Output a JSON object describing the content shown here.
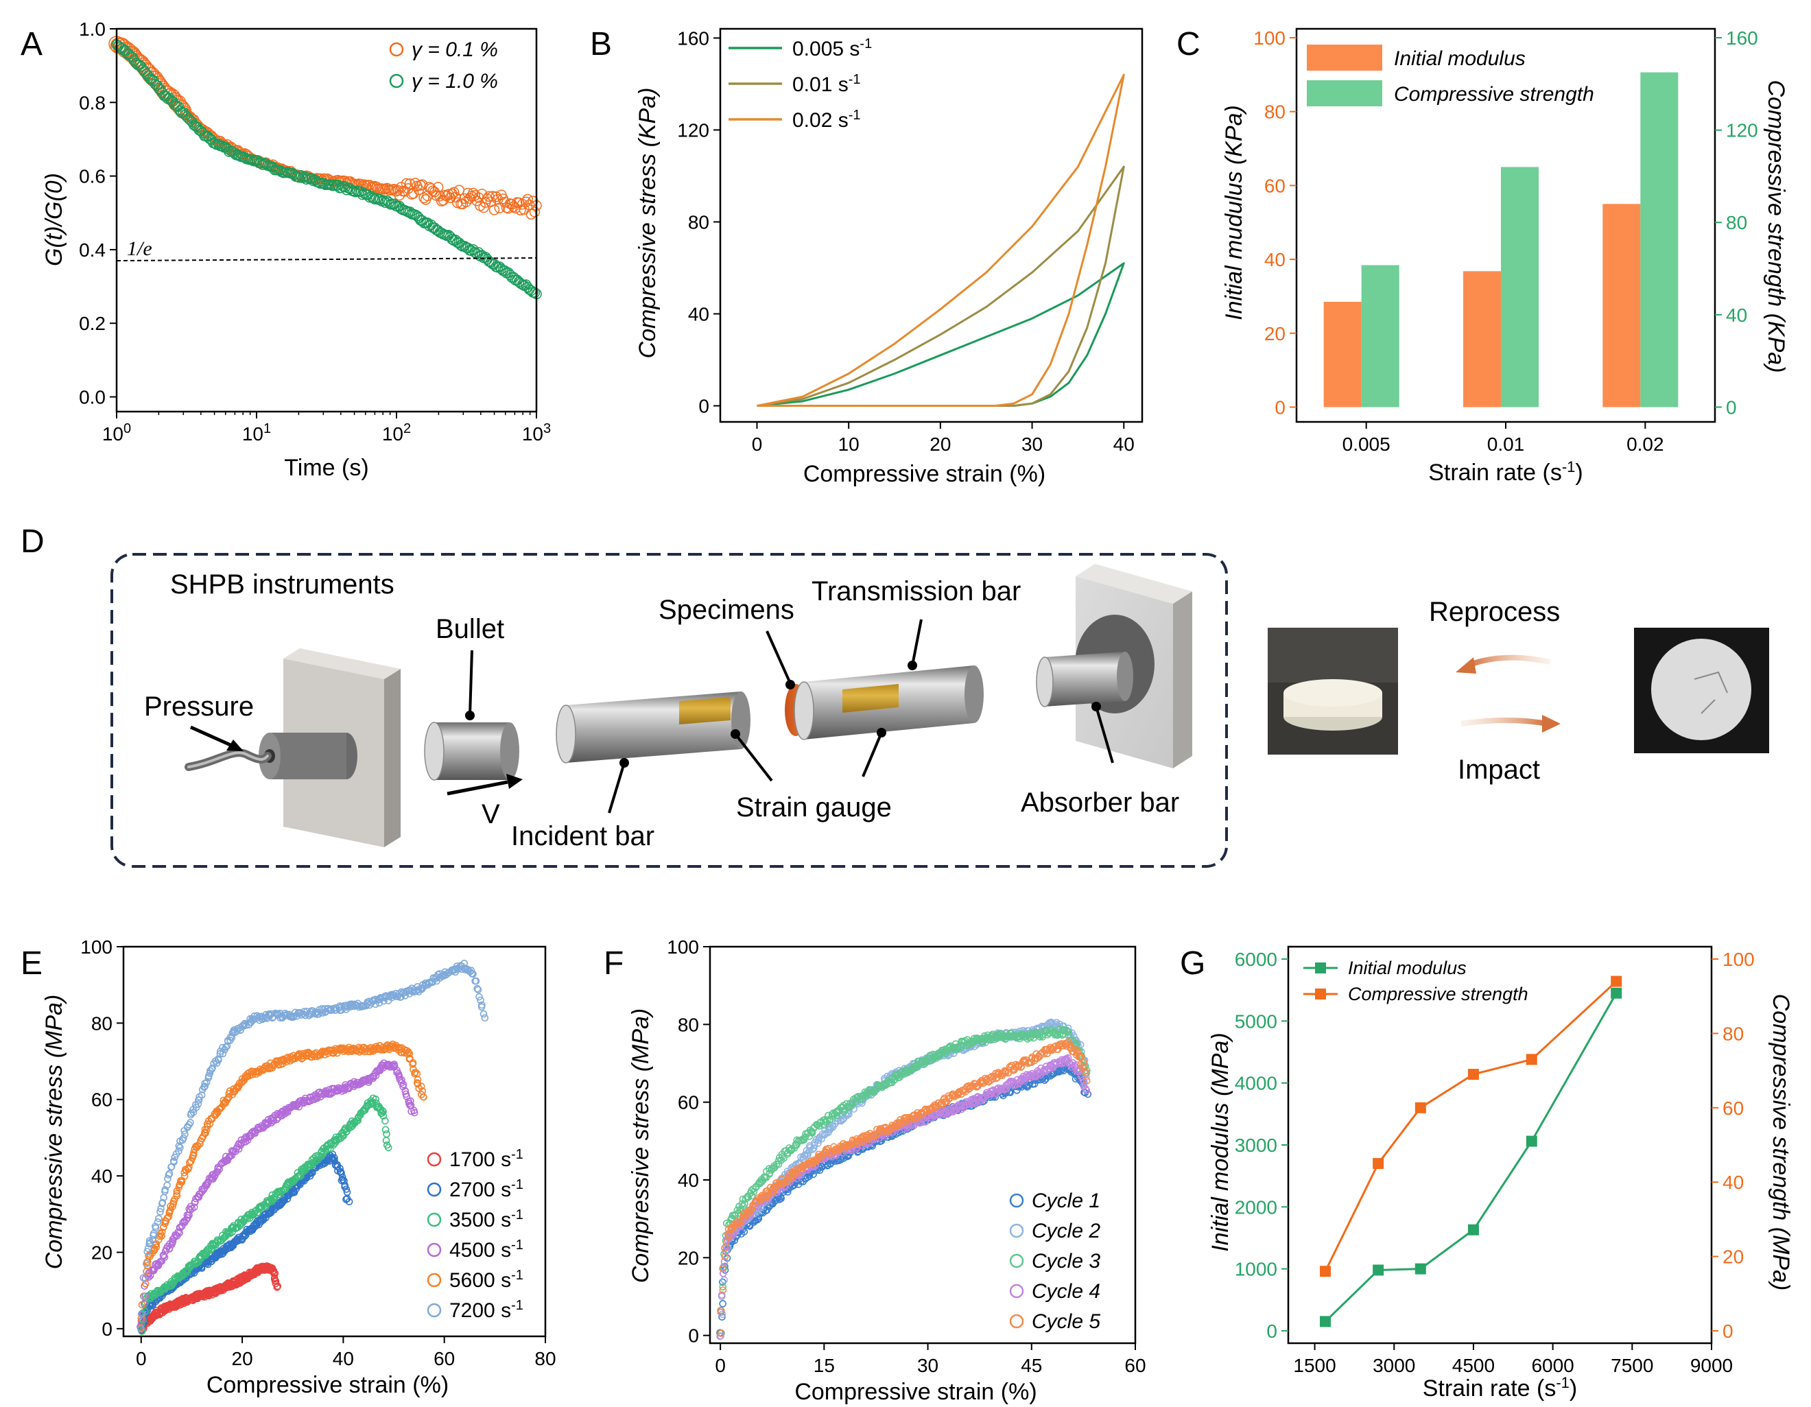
{
  "chart_data": [
    {
      "panel": "A",
      "type": "scatter",
      "xlabel": "Time (s)",
      "ylabel": "G(t)/G(0)",
      "xscale": "log",
      "xlim": [
        1,
        1000
      ],
      "ylim": [
        0,
        1.0
      ],
      "xticks": [
        "10^0",
        "10^1",
        "10^2",
        "10^3"
      ],
      "yticks": [
        "0.0",
        "0.2",
        "0.4",
        "0.6",
        "0.8",
        "1.0"
      ],
      "legend_position": "top-right",
      "reference_line": {
        "label": "1/e",
        "y": 0.37
      },
      "series": [
        {
          "name": "γ = 0.1 %",
          "color": "#f26d1f",
          "x": [
            1,
            1.3,
            1.7,
            2.2,
            3,
            4,
            5,
            7,
            10,
            15,
            20,
            30,
            50,
            70,
            100,
            150,
            200,
            300,
            500,
            700,
            1000
          ],
          "y": [
            0.96,
            0.93,
            0.88,
            0.83,
            0.78,
            0.73,
            0.7,
            0.67,
            0.64,
            0.62,
            0.6,
            0.59,
            0.58,
            0.57,
            0.56,
            0.56,
            0.55,
            0.54,
            0.53,
            0.53,
            0.51
          ]
        },
        {
          "name": "γ = 1.0 %",
          "color": "#1a9a5a",
          "x": [
            1,
            1.3,
            1.7,
            2.2,
            3,
            4,
            5,
            7,
            10,
            15,
            20,
            30,
            50,
            70,
            100,
            150,
            200,
            300,
            500,
            700,
            1000
          ],
          "y": [
            0.96,
            0.92,
            0.87,
            0.82,
            0.77,
            0.72,
            0.69,
            0.66,
            0.64,
            0.61,
            0.6,
            0.58,
            0.56,
            0.54,
            0.52,
            0.48,
            0.45,
            0.41,
            0.36,
            0.32,
            0.28
          ]
        }
      ]
    },
    {
      "panel": "B",
      "type": "line",
      "xlabel": "Compressive strain (%)",
      "ylabel": "Compressive stress (KPa)",
      "xlim": [
        0,
        40
      ],
      "ylim": [
        0,
        160
      ],
      "xticks": [
        "0",
        "10",
        "20",
        "30",
        "40"
      ],
      "yticks": [
        "0",
        "40",
        "80",
        "120",
        "160"
      ],
      "legend_position": "top-left",
      "series": [
        {
          "name": "0.005 s",
          "sup": "-1",
          "color": "#1a9a5a",
          "loading_x": [
            0,
            5,
            10,
            15,
            20,
            25,
            30,
            35,
            40
          ],
          "loading_y": [
            0,
            2,
            7,
            14,
            22,
            30,
            38,
            48,
            62
          ],
          "unloading_x": [
            40,
            38,
            36,
            34,
            32,
            30,
            28,
            24,
            20,
            10,
            0
          ],
          "unloading_y": [
            62,
            40,
            22,
            10,
            4,
            1,
            0,
            0,
            0,
            0,
            0
          ]
        },
        {
          "name": "0.01 s",
          "sup": "-1",
          "color": "#9b8d45",
          "loading_x": [
            0,
            5,
            10,
            15,
            20,
            25,
            30,
            35,
            40
          ],
          "loading_y": [
            0,
            3,
            10,
            20,
            31,
            43,
            58,
            76,
            104
          ],
          "unloading_x": [
            40,
            38,
            36,
            34,
            32,
            30,
            28,
            24,
            20,
            10,
            0
          ],
          "unloading_y": [
            104,
            62,
            34,
            15,
            5,
            1,
            0,
            0,
            0,
            0,
            0
          ]
        },
        {
          "name": "0.02 s",
          "sup": "-1",
          "color": "#e58a2e",
          "loading_x": [
            0,
            5,
            10,
            15,
            20,
            25,
            30,
            35,
            40
          ],
          "loading_y": [
            0,
            4,
            14,
            27,
            42,
            58,
            78,
            104,
            144
          ],
          "unloading_x": [
            40,
            38,
            36,
            34,
            32,
            30,
            28,
            26,
            20,
            10,
            0
          ],
          "unloading_y": [
            144,
            104,
            70,
            40,
            18,
            5,
            1,
            0,
            0,
            0,
            0
          ]
        }
      ]
    },
    {
      "panel": "C",
      "type": "bar",
      "xlabel": "Strain rate (s",
      "xlabel_sup": "-1",
      "xlabel_end": ")",
      "ylabel_left": "Initial mudulus (KPa)",
      "ylabel_right": "Compressive strength (KPa)",
      "categories": [
        "0.005",
        "0.01",
        "0.02"
      ],
      "ylim_left": [
        0,
        100
      ],
      "ylim_right": [
        0,
        160
      ],
      "yticks_left": [
        "0",
        "20",
        "40",
        "60",
        "80",
        "100"
      ],
      "yticks_right": [
        "0",
        "40",
        "80",
        "120",
        "160"
      ],
      "legend_position": "top-left",
      "series": [
        {
          "name": "Initial modulus",
          "axis": "left",
          "color": "#fb8c4e",
          "values": [
            28.5,
            36.8,
            55
          ]
        },
        {
          "name": "Compressive strength",
          "axis": "right",
          "color": "#6fcf97",
          "values": [
            61.5,
            104,
            145
          ]
        }
      ]
    },
    {
      "panel": "E",
      "type": "scatter",
      "xlabel": "Compressive strain (%)",
      "ylabel": "Compressive stress (MPa)",
      "xlim": [
        0,
        80
      ],
      "ylim": [
        0,
        100
      ],
      "xticks": [
        "0",
        "20",
        "40",
        "60",
        "80"
      ],
      "yticks": [
        "0",
        "20",
        "40",
        "60",
        "80",
        "100"
      ],
      "legend_position": "bottom-right",
      "series": [
        {
          "name": "1700 s",
          "sup": "-1",
          "color": "#e8413e",
          "x": [
            0,
            1,
            3,
            6,
            10,
            15,
            20,
            24,
            26,
            27
          ],
          "y": [
            0,
            2,
            4,
            6,
            8,
            10,
            13,
            16,
            16,
            11
          ]
        },
        {
          "name": "2700 s",
          "sup": "-1",
          "color": "#2f73c9",
          "x": [
            0,
            1,
            3,
            6,
            10,
            15,
            20,
            25,
            30,
            35,
            38,
            40,
            41
          ],
          "y": [
            0,
            5,
            8,
            11,
            15,
            19,
            24,
            30,
            36,
            43,
            45,
            39,
            33
          ]
        },
        {
          "name": "3500 s",
          "sup": "-1",
          "color": "#3dbe7c",
          "x": [
            0,
            1,
            4,
            8,
            12,
            16,
            20,
            25,
            30,
            35,
            40,
            44,
            46,
            48,
            49
          ],
          "y": [
            0,
            8,
            10,
            14,
            19,
            24,
            28,
            33,
            39,
            45,
            51,
            57,
            60,
            56,
            47
          ]
        },
        {
          "name": "4500 s",
          "sup": "-1",
          "color": "#b36bd9",
          "x": [
            0,
            1,
            4,
            8,
            12,
            16,
            20,
            25,
            30,
            35,
            40,
            45,
            48,
            50,
            52,
            54
          ],
          "y": [
            0,
            13,
            18,
            27,
            36,
            43,
            49,
            54,
            58,
            61,
            63,
            65,
            69,
            69,
            63,
            56
          ]
        },
        {
          "name": "5600 s",
          "sup": "-1",
          "color": "#f5812a",
          "x": [
            0,
            1,
            3,
            6,
            10,
            14,
            18,
            22,
            26,
            30,
            35,
            40,
            45,
            50,
            53,
            55,
            56
          ],
          "y": [
            0,
            17,
            22,
            32,
            45,
            55,
            62,
            67,
            69,
            71,
            72,
            73,
            73,
            74,
            72,
            64,
            60
          ]
        },
        {
          "name": "7200 s",
          "sup": "-1",
          "color": "#7fa9d9",
          "x": [
            0,
            1,
            3,
            6,
            10,
            14,
            18,
            22,
            26,
            30,
            35,
            40,
            45,
            50,
            55,
            60,
            64,
            66,
            68
          ],
          "y": [
            0,
            20,
            27,
            42,
            56,
            68,
            77,
            81,
            82,
            82,
            83,
            84,
            85,
            87,
            89,
            93,
            95,
            92,
            82
          ]
        }
      ]
    },
    {
      "panel": "F",
      "type": "scatter",
      "xlabel": "Compressive strain (%)",
      "ylabel": "Compressive stress (MPa)",
      "xlim": [
        0,
        60
      ],
      "ylim": [
        0,
        100
      ],
      "xticks": [
        "0",
        "15",
        "30",
        "45",
        "60"
      ],
      "yticks": [
        "0",
        "20",
        "40",
        "60",
        "80",
        "100"
      ],
      "legend_position": "bottom-right",
      "series": [
        {
          "name": "Cycle 1",
          "color": "#3a7fcf",
          "x": [
            0,
            0.5,
            1,
            2,
            5,
            10,
            15,
            20,
            25,
            30,
            35,
            40,
            45,
            48,
            50,
            52,
            53
          ],
          "y": [
            0,
            15,
            22,
            25,
            30,
            38,
            44,
            48,
            52,
            56,
            59,
            62,
            65,
            67,
            69,
            66,
            62
          ]
        },
        {
          "name": "Cycle 2",
          "color": "#8fb4e3",
          "x": [
            0,
            0.5,
            1,
            2,
            5,
            10,
            15,
            20,
            25,
            30,
            35,
            40,
            45,
            48,
            50,
            52,
            53
          ],
          "y": [
            0,
            17,
            25,
            27,
            32,
            42,
            52,
            60,
            67,
            71,
            74,
            77,
            78,
            80,
            79,
            74,
            67
          ]
        },
        {
          "name": "Cycle 3",
          "color": "#5fc78f",
          "x": [
            0,
            0.5,
            1,
            2,
            5,
            10,
            15,
            20,
            25,
            30,
            35,
            40,
            45,
            48,
            50,
            52,
            53
          ],
          "y": [
            0,
            20,
            28,
            31,
            38,
            48,
            55,
            61,
            66,
            71,
            75,
            77,
            77,
            78,
            78,
            73,
            67
          ]
        },
        {
          "name": "Cycle 4",
          "color": "#c084e0",
          "x": [
            0,
            0.5,
            1,
            2,
            5,
            10,
            15,
            20,
            25,
            30,
            35,
            40,
            45,
            48,
            50,
            52,
            53
          ],
          "y": [
            0,
            18,
            25,
            27,
            33,
            40,
            46,
            49,
            53,
            56,
            59,
            63,
            67,
            69,
            71,
            68,
            63
          ]
        },
        {
          "name": "Cycle 5",
          "color": "#f5894a",
          "x": [
            0,
            0.5,
            1,
            2,
            5,
            10,
            15,
            20,
            25,
            30,
            35,
            40,
            45,
            48,
            50,
            52,
            53
          ],
          "y": [
            0,
            19,
            26,
            28,
            34,
            41,
            47,
            50,
            54,
            58,
            63,
            67,
            71,
            74,
            75,
            72,
            66
          ]
        }
      ]
    },
    {
      "panel": "G",
      "type": "line",
      "xlabel": "Strain rate (s",
      "xlabel_sup": "-1",
      "xlabel_end": ")",
      "ylabel_left": "Initial modulus (MPa)",
      "ylabel_right": "Compressive strength (MPa)",
      "xlim": [
        1000,
        9000
      ],
      "ylim_left": [
        -200,
        6200
      ],
      "ylim_right": [
        -3.33,
        103.33
      ],
      "xticks": [
        "1500",
        "3000",
        "4500",
        "6000",
        "7500",
        "9000"
      ],
      "yticks_left": [
        "0",
        "1000",
        "2000",
        "3000",
        "4000",
        "5000",
        "6000"
      ],
      "yticks_right": [
        "0",
        "20",
        "40",
        "60",
        "80",
        "100"
      ],
      "legend_position": "top-left",
      "series": [
        {
          "name": "Initial modulus",
          "axis": "left",
          "color": "#27a465",
          "x": [
            1700,
            2700,
            3500,
            4500,
            5600,
            7200
          ],
          "y": [
            150,
            980,
            1000,
            1630,
            3060,
            5450
          ]
        },
        {
          "name": "Compressive strength",
          "axis": "right",
          "color": "#f26a1b",
          "x": [
            1700,
            2700,
            3500,
            4500,
            5600,
            7200
          ],
          "y": [
            16,
            45,
            60,
            69,
            73,
            94
          ]
        }
      ]
    }
  ],
  "panel_labels": {
    "A": "A",
    "B": "B",
    "C": "C",
    "D": "D",
    "E": "E",
    "F": "F",
    "G": "G"
  },
  "panel_a": {
    "ref_label": "1/e"
  },
  "diagram_d": {
    "title": "SHPB instruments",
    "pressure": "Pressure",
    "bullet": "Bullet",
    "velocity": "V",
    "incident_bar": "Incident bar",
    "strain_gauge": "Strain gauge",
    "specimens": "Specimens",
    "transmission_bar": "Transmission bar",
    "absorber_bar": "Absorber bar",
    "reprocess": "Reprocess",
    "impact": "Impact"
  }
}
